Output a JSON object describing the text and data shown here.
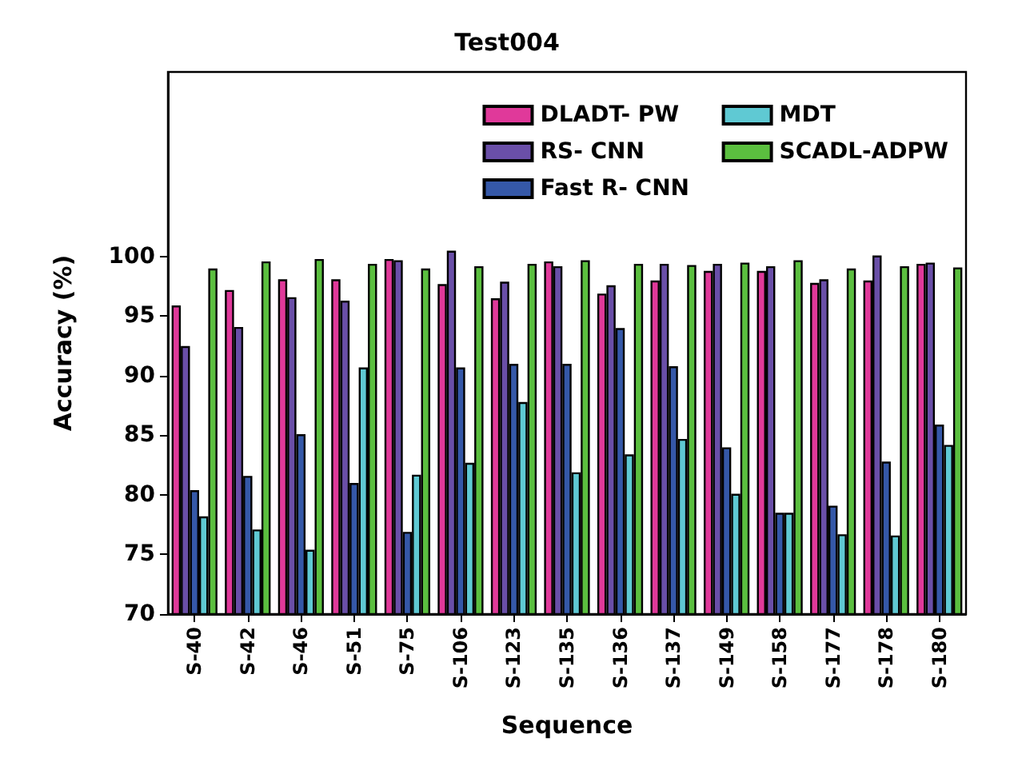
{
  "chart_data": {
    "type": "bar",
    "title": "Test004",
    "xlabel": "Sequence",
    "ylabel": "Accuracy (%)",
    "categories": [
      "S-40",
      "S-42",
      "S-46",
      "S-51",
      "S-75",
      "S-106",
      "S-123",
      "S-135",
      "S-136",
      "S-137",
      "S-149",
      "S-158",
      "S-177",
      "S-178",
      "S-180"
    ],
    "series": [
      {
        "name": "DLADT- PW",
        "color": "#e0399a",
        "values": [
          95.9,
          97.2,
          98.1,
          98.1,
          99.8,
          97.7,
          96.5,
          99.6,
          96.9,
          98.0,
          98.8,
          98.8,
          97.8,
          98.0,
          99.4
        ]
      },
      {
        "name": "RS- CNN",
        "color": "#6a4fa8",
        "values": [
          92.5,
          94.1,
          96.6,
          96.3,
          99.7,
          100.5,
          97.9,
          99.2,
          97.6,
          99.4,
          99.4,
          99.2,
          98.1,
          100.1,
          99.5
        ]
      },
      {
        "name": "Fast R- CNN",
        "color": "#3558a8",
        "values": [
          80.4,
          81.6,
          85.1,
          81.0,
          76.9,
          90.7,
          91.0,
          91.0,
          94.0,
          90.8,
          84.0,
          78.5,
          79.1,
          82.8,
          85.9
        ]
      },
      {
        "name": "MDT",
        "color": "#5fc9d3",
        "values": [
          78.2,
          77.1,
          75.4,
          90.7,
          81.7,
          82.7,
          87.8,
          81.9,
          83.4,
          84.7,
          80.1,
          78.5,
          76.7,
          76.6,
          84.2
        ]
      },
      {
        "name": "SCADL-ADPW",
        "color": "#5bbf3f",
        "values": [
          99.0,
          99.6,
          99.8,
          99.4,
          99.0,
          99.2,
          99.4,
          99.7,
          99.4,
          99.3,
          99.5,
          99.7,
          99.0,
          99.2,
          99.1
        ]
      }
    ],
    "ylim": [
      70,
      115.5
    ],
    "yticks": [
      70,
      75,
      80,
      85,
      90,
      95,
      100
    ],
    "grid": false,
    "legend": "top right"
  }
}
